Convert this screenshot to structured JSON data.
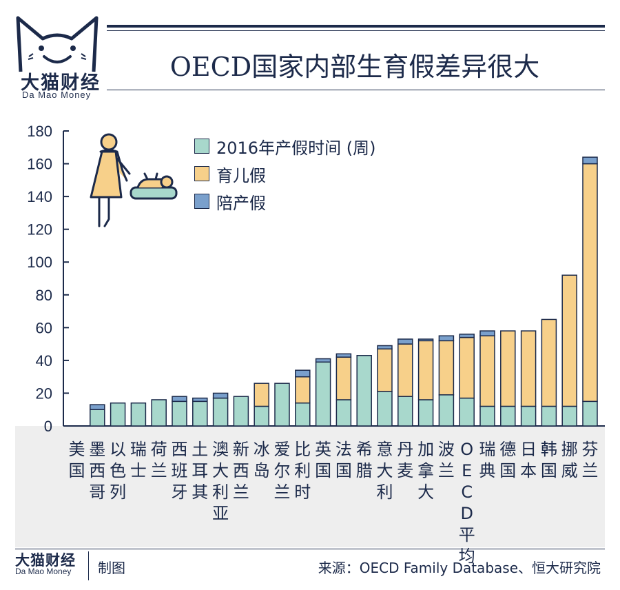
{
  "brand": {
    "name": "大猫财经",
    "name_en": "Da Mao Money"
  },
  "title": "OECD国家内部生育假差异很大",
  "footer": {
    "made": "制图",
    "source": "来源：OECD Family Database、恒大研究院"
  },
  "colors": {
    "maternity": "#a8d8cc",
    "parental": "#f7d08a",
    "paternity": "#7aa0cc",
    "ink": "#1c2a4a",
    "grey_band": "#eeeeee"
  },
  "icons": [
    "cat-logo-icon",
    "mother-baby-illustration"
  ],
  "chart_data": {
    "type": "bar",
    "stacked": true,
    "title": "",
    "xlabel": "",
    "ylabel": "",
    "ylim": [
      0,
      180
    ],
    "yticks": [
      0,
      20,
      40,
      60,
      80,
      100,
      120,
      140,
      160,
      180
    ],
    "legend_position": "top-left",
    "grid": false,
    "categories": [
      "美国",
      "墨西哥",
      "以色列",
      "瑞士",
      "荷兰",
      "西班牙",
      "土耳其",
      "澳大利亚",
      "新西兰",
      "冰岛",
      "爱尔兰",
      "比利时",
      "英国",
      "法国",
      "希腊",
      "意大利",
      "丹麦",
      "加拿大",
      "波兰",
      "OECD平均",
      "瑞典",
      "德国",
      "日本",
      "韩国",
      "挪威",
      "芬兰"
    ],
    "series": [
      {
        "name": "2016年产假时间 (周)",
        "values": [
          0,
          10,
          14,
          14,
          16,
          15,
          15,
          17,
          18,
          12,
          26,
          14,
          39,
          16,
          43,
          21,
          18,
          16,
          19,
          17,
          12,
          12,
          12,
          12,
          12,
          15
        ]
      },
      {
        "name": "育儿假",
        "values": [
          0,
          0,
          0,
          0,
          0,
          0,
          0,
          0,
          0,
          14,
          0,
          16,
          0,
          26,
          0,
          26,
          32,
          36,
          33,
          37,
          43,
          46,
          46,
          53,
          80,
          145
        ]
      },
      {
        "name": "陪产假",
        "values": [
          0,
          3,
          0,
          0,
          0,
          3,
          2,
          3,
          0,
          0,
          0,
          4,
          2,
          2,
          0,
          2,
          3,
          1,
          3,
          2,
          3,
          0,
          0,
          0,
          0,
          4
        ]
      }
    ]
  }
}
